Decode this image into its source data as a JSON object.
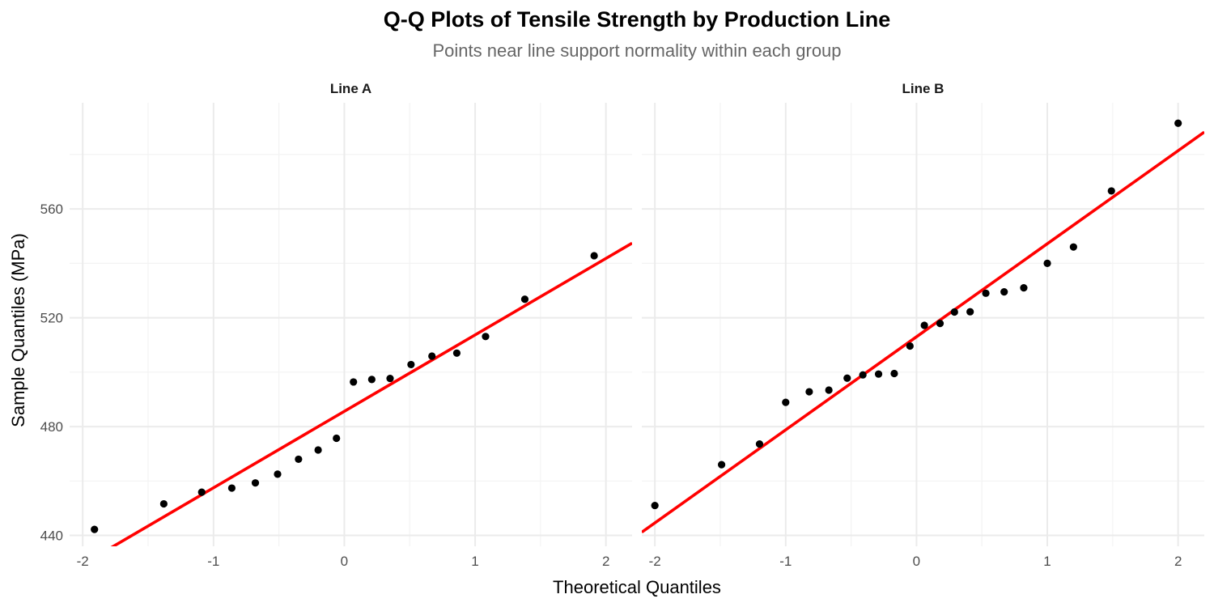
{
  "chart_data": {
    "type": "scatter",
    "title": "Q-Q Plots of Tensile Strength by Production Line",
    "subtitle": "Points near line support normality within each group",
    "xlabel": "Theoretical Quantiles",
    "ylabel": "Sample Quantiles (MPa)",
    "xlim": [
      -2.1,
      2.2
    ],
    "ylim": [
      436,
      599
    ],
    "x_ticks": [
      -2,
      -1,
      0,
      1,
      2
    ],
    "x_tick_labels": [
      "-2",
      "-1",
      "0",
      "1",
      "2"
    ],
    "y_ticks": [
      440,
      480,
      520,
      560
    ],
    "y_tick_labels": [
      "440",
      "480",
      "520",
      "560"
    ],
    "grid": true,
    "legend": "none",
    "colors": {
      "points": "#000000",
      "reference_line": "#ff0000"
    },
    "panels": [
      {
        "label": "Line A",
        "points": [
          {
            "x": -1.91,
            "y": 442.2
          },
          {
            "x": -1.38,
            "y": 451.6
          },
          {
            "x": -1.09,
            "y": 455.9
          },
          {
            "x": -0.86,
            "y": 457.4
          },
          {
            "x": -0.68,
            "y": 459.3
          },
          {
            "x": -0.51,
            "y": 462.5
          },
          {
            "x": -0.35,
            "y": 468.0
          },
          {
            "x": -0.2,
            "y": 471.4
          },
          {
            "x": -0.06,
            "y": 475.7
          },
          {
            "x": 0.07,
            "y": 496.4
          },
          {
            "x": 0.21,
            "y": 497.3
          },
          {
            "x": 0.35,
            "y": 497.7
          },
          {
            "x": 0.51,
            "y": 502.8
          },
          {
            "x": 0.67,
            "y": 505.9
          },
          {
            "x": 0.86,
            "y": 507.0
          },
          {
            "x": 1.08,
            "y": 513.1
          },
          {
            "x": 1.38,
            "y": 526.8
          },
          {
            "x": 1.91,
            "y": 542.8
          }
        ],
        "reference_line": {
          "intercept": 485.6,
          "slope": 28.1
        }
      },
      {
        "label": "Line B",
        "points": [
          {
            "x": -2.0,
            "y": 451.0
          },
          {
            "x": -1.49,
            "y": 466.0
          },
          {
            "x": -1.2,
            "y": 473.6
          },
          {
            "x": -1.0,
            "y": 488.9
          },
          {
            "x": -0.82,
            "y": 492.8
          },
          {
            "x": -0.67,
            "y": 493.4
          },
          {
            "x": -0.53,
            "y": 497.8
          },
          {
            "x": -0.41,
            "y": 499.0
          },
          {
            "x": -0.29,
            "y": 499.3
          },
          {
            "x": -0.17,
            "y": 499.5
          },
          {
            "x": -0.05,
            "y": 509.6
          },
          {
            "x": 0.06,
            "y": 517.2
          },
          {
            "x": 0.18,
            "y": 517.9
          },
          {
            "x": 0.29,
            "y": 522.1
          },
          {
            "x": 0.41,
            "y": 522.2
          },
          {
            "x": 0.53,
            "y": 529.0
          },
          {
            "x": 0.67,
            "y": 529.5
          },
          {
            "x": 0.82,
            "y": 531.0
          },
          {
            "x": 1.0,
            "y": 540.0
          },
          {
            "x": 1.2,
            "y": 546.0
          },
          {
            "x": 1.49,
            "y": 566.6
          },
          {
            "x": 2.0,
            "y": 591.5
          }
        ],
        "reference_line": {
          "intercept": 513.0,
          "slope": 34.2
        }
      }
    ]
  }
}
